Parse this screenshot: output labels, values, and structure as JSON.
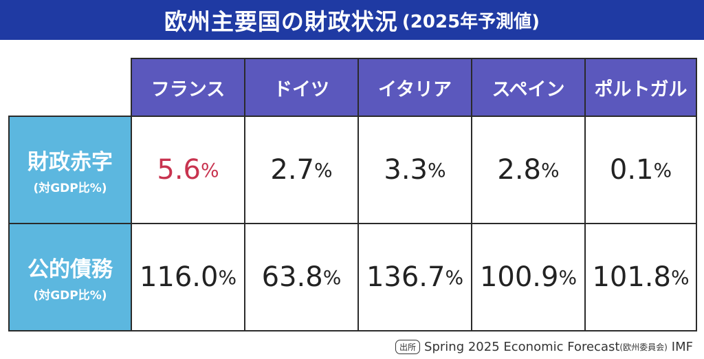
{
  "title": {
    "main": "欧州主要国の財政状況",
    "sub": "(2025年予測値)"
  },
  "table": {
    "columns": [
      "フランス",
      "ドイツ",
      "イタリア",
      "スペイン",
      "ポルトガル"
    ],
    "rows": [
      {
        "label": "財政赤字",
        "sublabel": "(対GDP比%)",
        "values": [
          "5.6",
          "2.7",
          "3.3",
          "2.8",
          "0.1"
        ]
      },
      {
        "label": "公的債務",
        "sublabel": "(対GDP比%)",
        "values": [
          "116.0",
          "63.8",
          "136.7",
          "100.9",
          "101.8"
        ]
      }
    ],
    "unit": "%",
    "highlight_color": "#c8334f"
  },
  "source": {
    "badge": "出所",
    "text_main": "Spring 2025 Economic Forecast",
    "text_note": "(欧州委員会)",
    "text_tail": "IMF"
  }
}
